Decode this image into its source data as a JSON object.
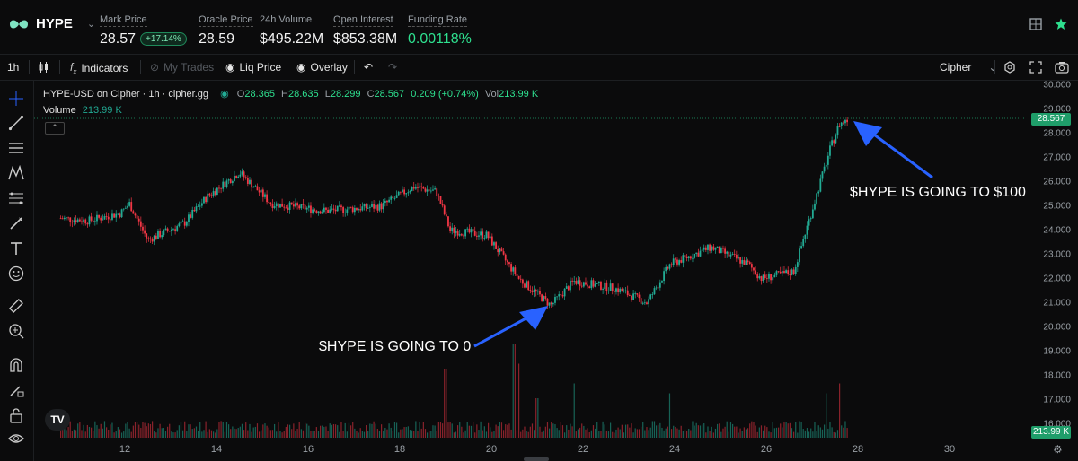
{
  "header": {
    "ticker": "HYPE",
    "stats": [
      {
        "label": "Mark Price",
        "value": "28.57",
        "badge": "+17.14%"
      },
      {
        "label": "Oracle Price",
        "value": "28.59"
      },
      {
        "label": "24h Volume",
        "value": "$495.22M"
      },
      {
        "label": "Open Interest",
        "value": "$853.38M"
      },
      {
        "label": "Funding Rate",
        "value": "0.00118%"
      }
    ],
    "icons": [
      "window-icon",
      "star-icon"
    ]
  },
  "toolbar": {
    "interval": "1h",
    "indicators": "Indicators",
    "my_trades": "My Trades",
    "liq_price": "Liq Price",
    "overlay": "Overlay",
    "source": "Cipher"
  },
  "legend": {
    "title": "HYPE-USD on Cipher · 1h · cipher.gg",
    "o_label": "O",
    "o": "28.365",
    "h_label": "H",
    "h": "28.635",
    "l_label": "L",
    "l": "28.299",
    "c_label": "C",
    "c": "28.567",
    "change": "0.209 (+0.74%)",
    "vol_label": "Vol",
    "vol": "213.99 K",
    "volume_label": "Volume",
    "volume_value": "213.99 K"
  },
  "price_tag": "28.567",
  "volume_tag": "213.99 K",
  "annotations": {
    "low": "$HYPE IS GOING TO 0",
    "high": "$HYPE IS GOING TO $100"
  },
  "colors": {
    "up": "#22ab94",
    "down": "#f23645",
    "accent": "#2ee08f",
    "arrow": "#2962ff"
  },
  "chart_data": {
    "type": "candlestick",
    "x_ticks": [
      "12",
      "14",
      "16",
      "18",
      "20",
      "22",
      "24",
      "26",
      "28",
      "30"
    ],
    "y_ticks": [
      "30.000",
      "29.000",
      "28.000",
      "27.000",
      "26.000",
      "25.000",
      "24.000",
      "23.000",
      "22.000",
      "21.000",
      "20.000",
      "19.000",
      "18.000",
      "17.000",
      "16.000"
    ],
    "ylim": [
      15.5,
      30.0
    ],
    "price_path": [
      {
        "day": 10.6,
        "price": 24.5
      },
      {
        "day": 11.2,
        "price": 24.4
      },
      {
        "day": 11.9,
        "price": 24.7
      },
      {
        "day": 12.1,
        "price": 25.1
      },
      {
        "day": 12.5,
        "price": 23.6
      },
      {
        "day": 13.3,
        "price": 24.3
      },
      {
        "day": 13.8,
        "price": 25.4
      },
      {
        "day": 14.5,
        "price": 26.4
      },
      {
        "day": 15.2,
        "price": 25.1
      },
      {
        "day": 16.4,
        "price": 24.8
      },
      {
        "day": 17.6,
        "price": 25.0
      },
      {
        "day": 18.3,
        "price": 25.8
      },
      {
        "day": 18.8,
        "price": 25.6
      },
      {
        "day": 19.1,
        "price": 24.0
      },
      {
        "day": 19.9,
        "price": 23.8
      },
      {
        "day": 20.6,
        "price": 22.0
      },
      {
        "day": 21.3,
        "price": 20.9
      },
      {
        "day": 21.8,
        "price": 21.9
      },
      {
        "day": 22.7,
        "price": 21.6
      },
      {
        "day": 23.4,
        "price": 21.0
      },
      {
        "day": 23.9,
        "price": 22.6
      },
      {
        "day": 24.8,
        "price": 23.3
      },
      {
        "day": 25.6,
        "price": 22.6
      },
      {
        "day": 25.9,
        "price": 22.0
      },
      {
        "day": 26.6,
        "price": 22.3
      },
      {
        "day": 26.9,
        "price": 24.2
      },
      {
        "day": 27.4,
        "price": 27.4
      },
      {
        "day": 27.6,
        "price": 28.4
      },
      {
        "day": 27.8,
        "price": 28.57
      }
    ],
    "volume_spikes": [
      {
        "day": 19.0,
        "rel": 0.7
      },
      {
        "day": 20.5,
        "rel": 0.95
      },
      {
        "day": 20.6,
        "rel": 0.75
      },
      {
        "day": 21.0,
        "rel": 0.4
      },
      {
        "day": 21.8,
        "rel": 0.55
      },
      {
        "day": 23.9,
        "rel": 0.45
      },
      {
        "day": 27.3,
        "rel": 0.45
      },
      {
        "day": 27.6,
        "rel": 0.55
      }
    ]
  }
}
